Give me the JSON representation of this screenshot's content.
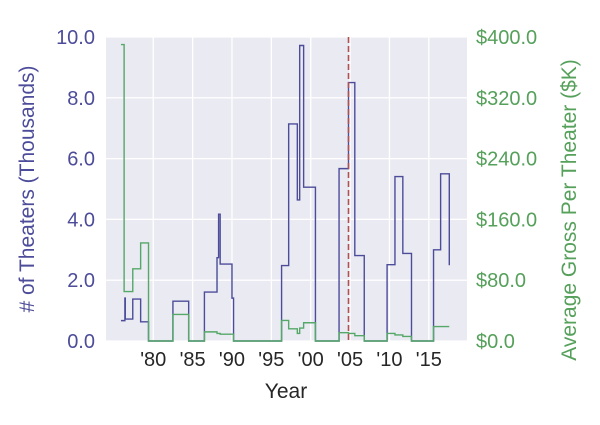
{
  "chart_data": {
    "type": "line",
    "step": "post",
    "xlabel": "Year",
    "xlim": [
      1974.0,
      2019.85
    ],
    "xticks": [
      1980,
      1985,
      1990,
      1995,
      2000,
      2005,
      2010,
      2015
    ],
    "xtick_labels": [
      "'80",
      "'85",
      "'90",
      "'95",
      "'00",
      "'05",
      "'10",
      "'15"
    ],
    "grid": true,
    "left_axis": {
      "label": "# of Theaters (Thousands)",
      "ylim": [
        0,
        10
      ],
      "ticks": [
        0,
        2,
        4,
        6,
        8,
        10
      ],
      "tick_labels": [
        "0.0",
        "2.0",
        "4.0",
        "6.0",
        "8.0",
        "10.0"
      ],
      "color": "#4c4c9a"
    },
    "right_axis": {
      "label": "Average Gross Per Theater ($K)",
      "ylim": [
        0,
        400
      ],
      "ticks": [
        0,
        80,
        160,
        240,
        320,
        400
      ],
      "tick_labels": [
        "$0.0",
        "$80.0",
        "$160.0",
        "$240.0",
        "$320.0",
        "$400.0"
      ],
      "color": "#55a05a"
    },
    "series": [
      {
        "axis": "left",
        "color": "#4c4c9a",
        "points": [
          [
            1975.9,
            0.67
          ],
          [
            1976.4,
            1.41
          ],
          [
            1976.45,
            0.72
          ],
          [
            1977.4,
            1.38
          ],
          [
            1978.4,
            0.63
          ],
          [
            1979.4,
            0
          ],
          [
            1982.5,
            1.31
          ],
          [
            1984.5,
            0
          ],
          [
            1986.5,
            1.61
          ],
          [
            1988.1,
            2.74
          ],
          [
            1988.3,
            4.17
          ],
          [
            1988.5,
            2.53
          ],
          [
            1990.0,
            1.41
          ],
          [
            1990.2,
            0
          ],
          [
            1996.3,
            2.48
          ],
          [
            1997.2,
            7.14
          ],
          [
            1998.3,
            4.64
          ],
          [
            1998.6,
            9.72
          ],
          [
            1999.1,
            5.06
          ],
          [
            2000.6,
            0
          ],
          [
            2003.6,
            5.67
          ],
          [
            2004.8,
            8.5
          ],
          [
            2005.6,
            2.81
          ],
          [
            2006.8,
            0
          ],
          [
            2009.7,
            2.51
          ],
          [
            2010.7,
            5.41
          ],
          [
            2011.7,
            2.88
          ],
          [
            2012.8,
            0
          ],
          [
            2015.6,
            3.0
          ],
          [
            2016.5,
            5.5
          ],
          [
            2017.6,
            2.49
          ]
        ]
      },
      {
        "axis": "right",
        "color": "#55a868",
        "points": [
          [
            1975.9,
            390
          ],
          [
            1976.3,
            65
          ],
          [
            1977.4,
            95
          ],
          [
            1978.4,
            129
          ],
          [
            1979.4,
            0
          ],
          [
            1982.5,
            35
          ],
          [
            1984.5,
            0
          ],
          [
            1986.5,
            12
          ],
          [
            1988.1,
            10
          ],
          [
            1988.5,
            9
          ],
          [
            1990.2,
            0
          ],
          [
            1996.3,
            27
          ],
          [
            1997.2,
            16
          ],
          [
            1998.3,
            10
          ],
          [
            1998.6,
            17
          ],
          [
            1999.1,
            24
          ],
          [
            2000.6,
            0
          ],
          [
            2003.6,
            11
          ],
          [
            2004.8,
            10
          ],
          [
            2005.6,
            7
          ],
          [
            2006.8,
            0
          ],
          [
            2009.7,
            10
          ],
          [
            2010.7,
            8
          ],
          [
            2011.7,
            6
          ],
          [
            2012.8,
            0
          ],
          [
            2015.6,
            19
          ],
          [
            2017.6,
            19
          ]
        ]
      }
    ],
    "annotations": [
      {
        "type": "vline",
        "x": 2004.8,
        "style": "dashed",
        "color": "#b05050"
      }
    ]
  }
}
